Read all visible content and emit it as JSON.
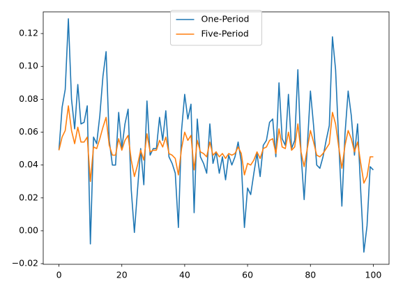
{
  "chart_data": {
    "type": "line",
    "x": [
      0,
      1,
      2,
      3,
      4,
      5,
      6,
      7,
      8,
      9,
      10,
      11,
      12,
      13,
      14,
      15,
      16,
      17,
      18,
      19,
      20,
      21,
      22,
      23,
      24,
      25,
      26,
      27,
      28,
      29,
      30,
      31,
      32,
      33,
      34,
      35,
      36,
      37,
      38,
      39,
      40,
      41,
      42,
      43,
      44,
      45,
      46,
      47,
      48,
      49,
      50,
      51,
      52,
      53,
      54,
      55,
      56,
      57,
      58,
      59,
      60,
      61,
      62,
      63,
      64,
      65,
      66,
      67,
      68,
      69,
      70,
      71,
      72,
      73,
      74,
      75,
      76,
      77,
      78,
      79,
      80,
      81,
      82,
      83,
      84,
      85,
      86,
      87,
      88,
      89,
      90,
      91,
      92,
      93,
      94,
      95,
      96,
      97,
      98,
      99,
      100
    ],
    "series": [
      {
        "name": "One-Period",
        "color": "#1f77b4",
        "values": [
          0.049,
          0.075,
          0.086,
          0.129,
          0.08,
          0.062,
          0.089,
          0.065,
          0.066,
          0.076,
          -0.008,
          0.057,
          0.053,
          0.07,
          0.094,
          0.109,
          0.055,
          0.04,
          0.04,
          0.072,
          0.05,
          0.065,
          0.074,
          0.025,
          -0.001,
          0.025,
          0.05,
          0.028,
          0.079,
          0.046,
          0.05,
          0.05,
          0.069,
          0.055,
          0.073,
          0.045,
          0.041,
          0.035,
          0.002,
          0.061,
          0.083,
          0.068,
          0.077,
          0.011,
          0.068,
          0.045,
          0.041,
          0.035,
          0.065,
          0.041,
          0.048,
          0.035,
          0.045,
          0.031,
          0.046,
          0.04,
          0.045,
          0.054,
          0.042,
          0.002,
          0.026,
          0.022,
          0.035,
          0.047,
          0.033,
          0.052,
          0.055,
          0.066,
          0.068,
          0.045,
          0.09,
          0.056,
          0.052,
          0.083,
          0.05,
          0.055,
          0.098,
          0.047,
          0.019,
          0.051,
          0.085,
          0.064,
          0.04,
          0.038,
          0.045,
          0.055,
          0.064,
          0.118,
          0.098,
          0.054,
          0.015,
          0.059,
          0.085,
          0.07,
          0.046,
          0.065,
          0.024,
          -0.013,
          0.003,
          0.039,
          0.037
        ]
      },
      {
        "name": "Five-Period",
        "color": "#ff7f0e",
        "values": [
          0.049,
          0.057,
          0.061,
          0.076,
          0.061,
          0.053,
          0.063,
          0.054,
          0.054,
          0.057,
          0.03,
          0.051,
          0.05,
          0.056,
          0.063,
          0.069,
          0.052,
          0.046,
          0.046,
          0.056,
          0.049,
          0.055,
          0.058,
          0.043,
          0.033,
          0.04,
          0.049,
          0.043,
          0.059,
          0.048,
          0.049,
          0.049,
          0.055,
          0.051,
          0.057,
          0.047,
          0.046,
          0.044,
          0.034,
          0.05,
          0.06,
          0.055,
          0.058,
          0.037,
          0.055,
          0.048,
          0.047,
          0.045,
          0.054,
          0.046,
          0.048,
          0.045,
          0.047,
          0.044,
          0.047,
          0.046,
          0.047,
          0.051,
          0.047,
          0.034,
          0.041,
          0.04,
          0.043,
          0.048,
          0.044,
          0.05,
          0.051,
          0.055,
          0.056,
          0.047,
          0.062,
          0.051,
          0.05,
          0.06,
          0.049,
          0.051,
          0.065,
          0.048,
          0.039,
          0.05,
          0.061,
          0.054,
          0.046,
          0.045,
          0.047,
          0.05,
          0.053,
          0.072,
          0.065,
          0.051,
          0.038,
          0.052,
          0.061,
          0.056,
          0.048,
          0.054,
          0.041,
          0.029,
          0.033,
          0.045,
          0.045
        ]
      }
    ],
    "xlim": [
      -5,
      105
    ],
    "xticks": [
      0,
      20,
      40,
      60,
      80,
      100
    ],
    "ylim": [
      -0.0204,
      0.1332
    ],
    "yticks": [
      {
        "value": -0.02,
        "label": "−0.02"
      },
      {
        "value": 0,
        "label": "0.00"
      },
      0.02,
      0.04,
      0.06,
      0.08,
      {
        "value": 0.1,
        "label": "0.10"
      },
      0.12
    ],
    "legend": "upper center"
  }
}
